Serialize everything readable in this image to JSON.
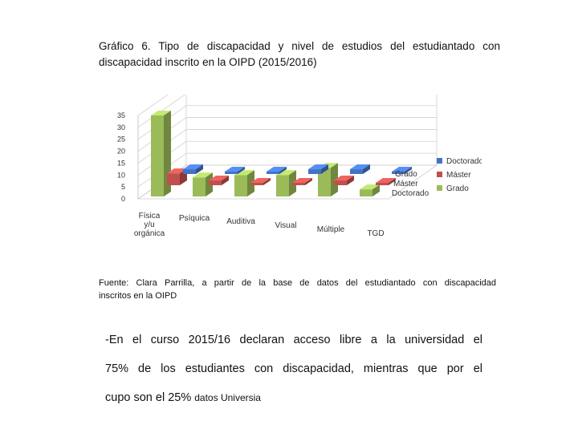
{
  "caption": {
    "line1": "Gráfico 6. Tipo de discapacidad y nivel de estudios del estudiantado con",
    "line2": "discapacidad inscrito en la OIPD (2015/2016)"
  },
  "source": {
    "line1": "Fuente: Clara Parrilla, a partir de la base de datos del estudiantado con discapacidad",
    "line2": "inscritos en la OIPD"
  },
  "body": {
    "line1": "-En el curso 2015/16 declaran acceso libre a la universidad el",
    "line2": "75% de los estudiantes con discapacidad, mientras que por el",
    "line3_main": "cupo son el 25%",
    "line3_small": "datos Universia"
  },
  "chart_data": {
    "type": "bar",
    "categories": [
      "Física y/u orgánica",
      "Psíquica",
      "Auditiva",
      "Visual",
      "Múltiple",
      "TGD"
    ],
    "series": [
      {
        "name": "Doctorado",
        "values": [
          2,
          1,
          1,
          2,
          2,
          1
        ],
        "color": "#4472c4"
      },
      {
        "name": "Máster",
        "values": [
          5,
          2,
          1,
          1,
          2,
          0
        ],
        "color": "#c0504d"
      },
      {
        "name": "Grado",
        "values": [
          34,
          8,
          9,
          9,
          12,
          3
        ],
        "color": "#9bbb59"
      }
    ],
    "depth_labels": [
      "Grado",
      "Máster",
      "Doctorado"
    ],
    "legend": [
      "Doctorado",
      "Máster",
      "Grado"
    ],
    "legend_position": "right",
    "yticks": [
      0,
      5,
      10,
      15,
      20,
      25,
      30,
      35
    ],
    "ylim": [
      0,
      35
    ],
    "grid": true,
    "three_d": true
  }
}
